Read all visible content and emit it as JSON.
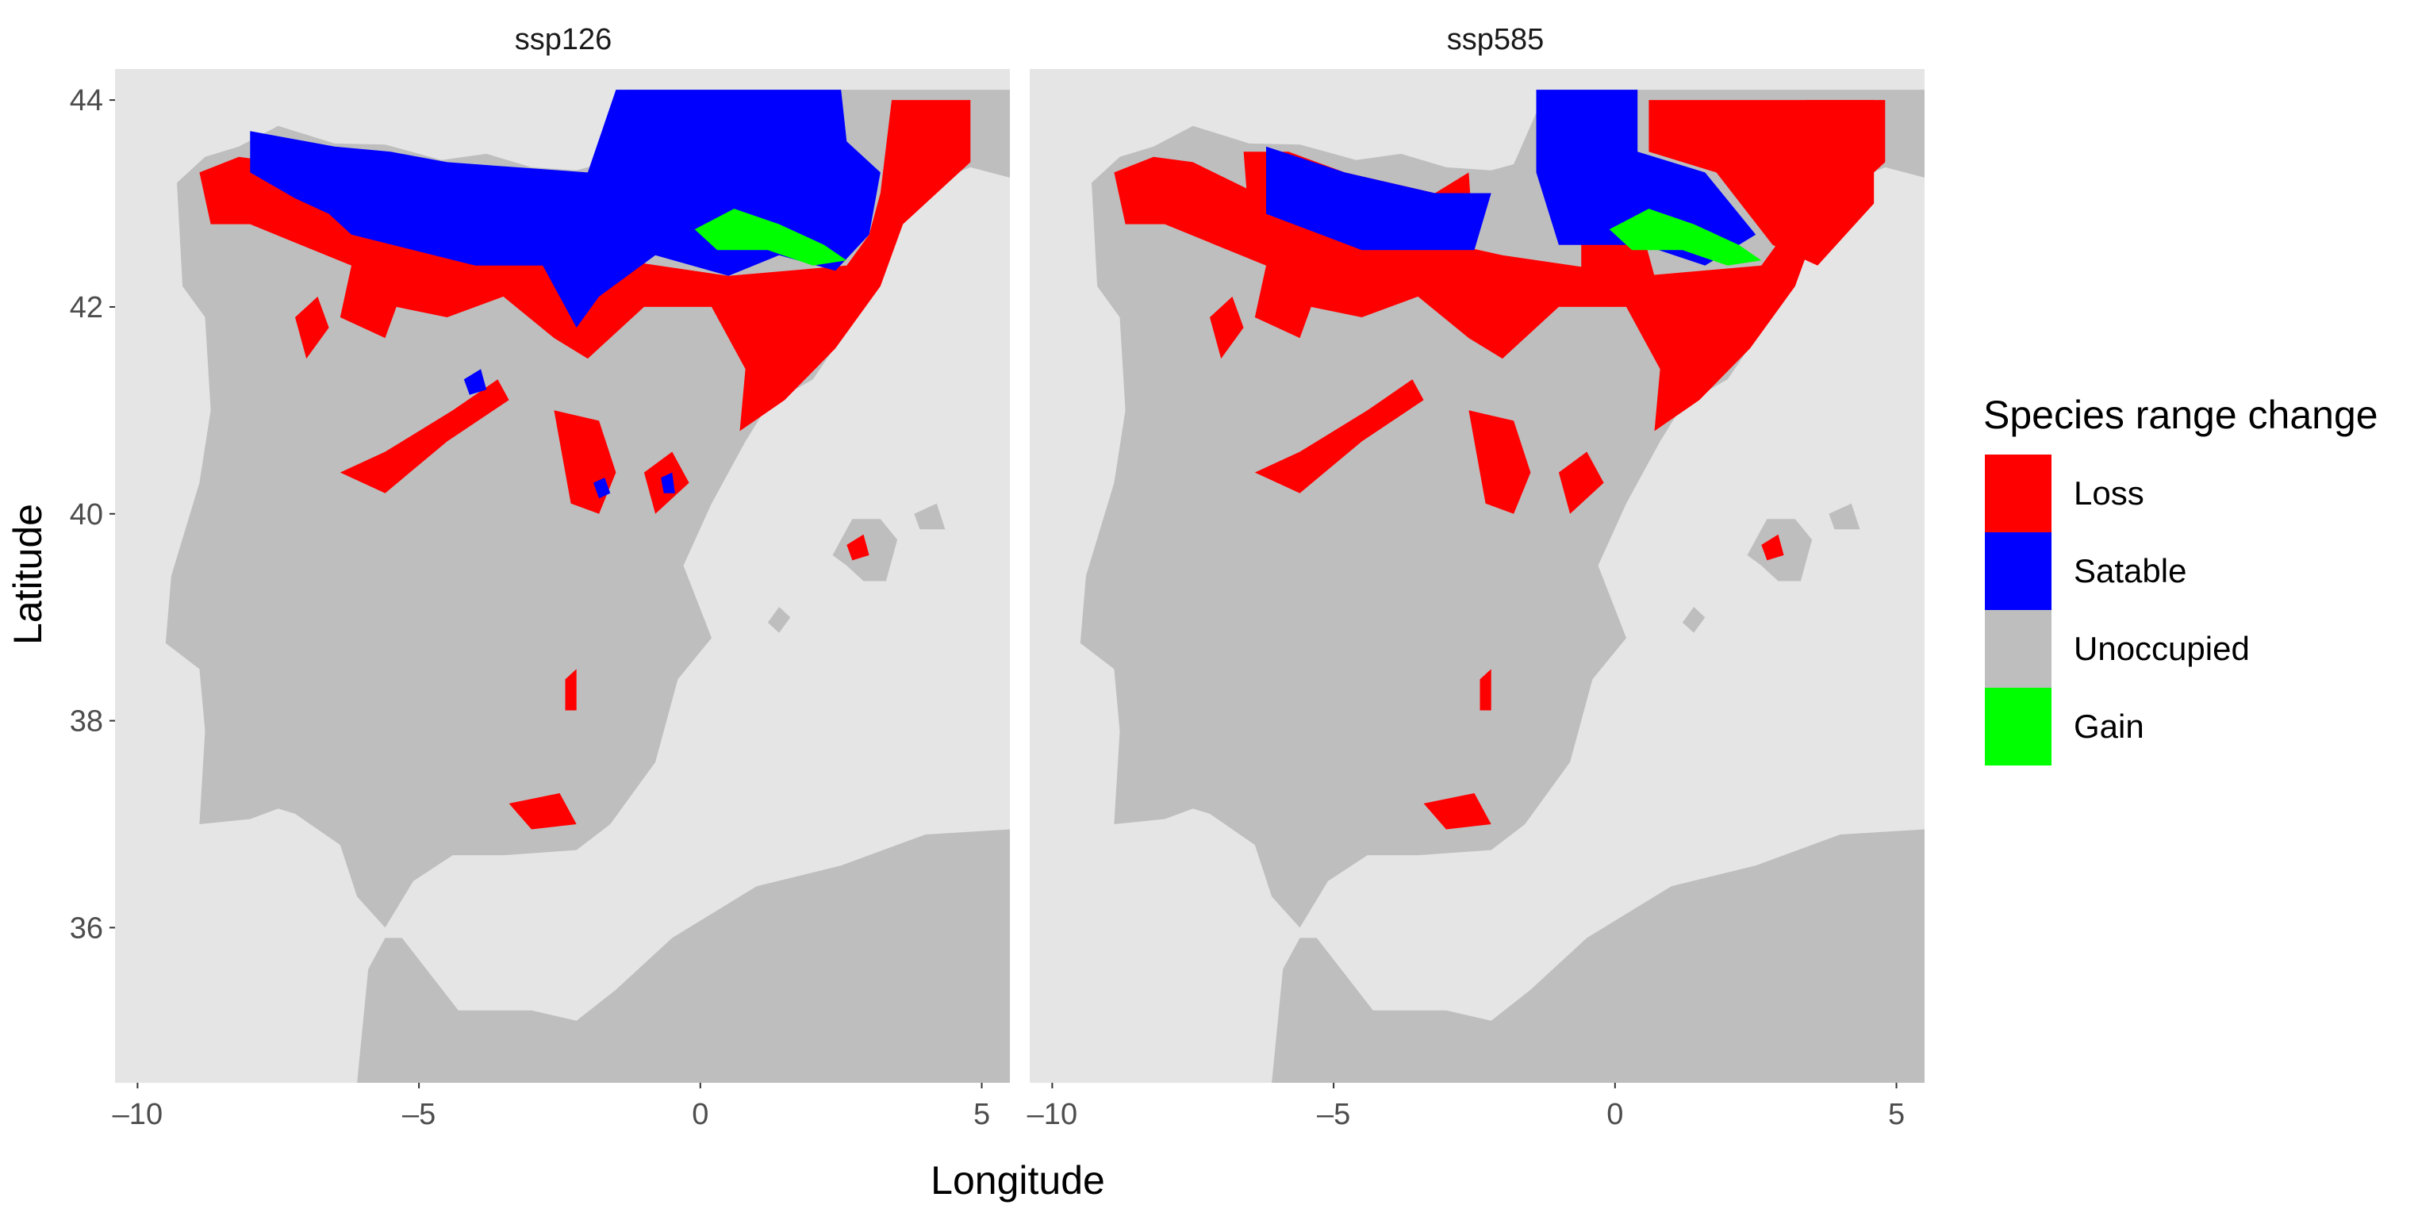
{
  "chart_data": {
    "type": "map",
    "facets": [
      {
        "label": "ssp126"
      },
      {
        "label": "ssp585"
      }
    ],
    "xlabel": "Longitude",
    "ylabel": "Latitude",
    "xlim": [
      -10,
      5
    ],
    "ylim": [
      34.5,
      44.3
    ],
    "x_ticks": [
      {
        "value": -10,
        "label": "–10"
      },
      {
        "value": -5,
        "label": "–5"
      },
      {
        "value": 0,
        "label": "0"
      },
      {
        "value": 5,
        "label": "5"
      }
    ],
    "y_ticks": [
      {
        "value": 36,
        "label": "36"
      },
      {
        "value": 38,
        "label": "38"
      },
      {
        "value": 40,
        "label": "40"
      },
      {
        "value": 42,
        "label": "42"
      },
      {
        "value": 44,
        "label": "44"
      }
    ],
    "legend": {
      "title": "Species range change",
      "position": "right",
      "items": [
        {
          "label": "Loss",
          "color": "#ff0000"
        },
        {
          "label": "Satable",
          "color": "#0000ff"
        },
        {
          "label": "Unoccupied",
          "color": "#bebebe"
        },
        {
          "label": "Gain",
          "color": "#00ff00"
        }
      ]
    },
    "colors": {
      "panel_background": "#e5e5e5",
      "land": "#bebebe",
      "loss": "#ff0000",
      "stable": "#0000ff",
      "gain": "#00ff00"
    },
    "grid": false
  }
}
